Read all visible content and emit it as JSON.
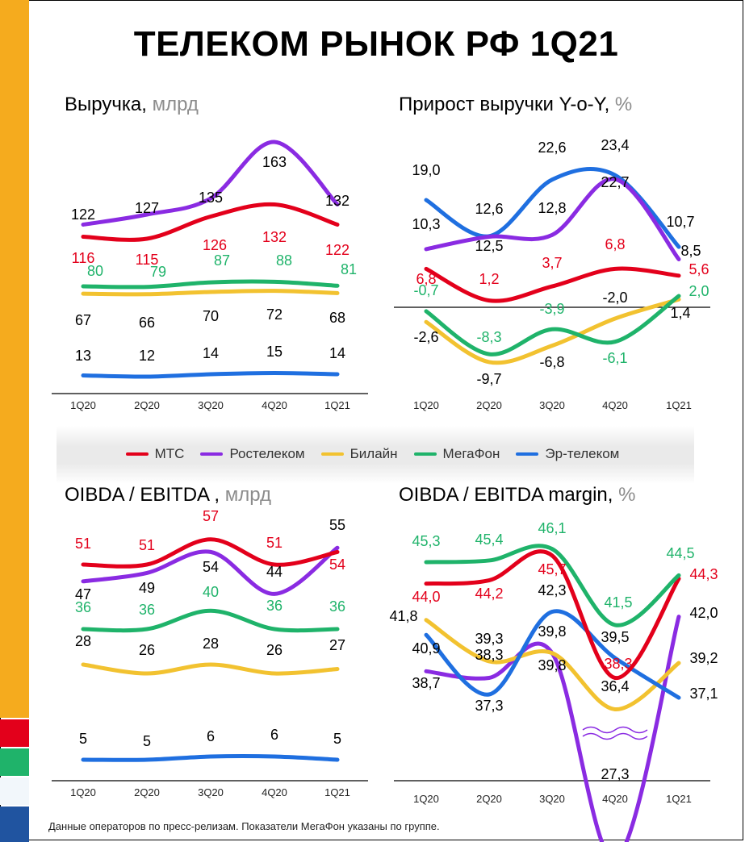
{
  "title": "ТЕЛЕКОМ РЫНОК РФ 1Q21",
  "colors": {
    "МТС": "#e3001b",
    "Ростелеком": "#8a2be2",
    "Билайн": "#f2c230",
    "МегаФон": "#1fb36a",
    "Эр-телеком": "#1f6fe0"
  },
  "legend": [
    "МТС",
    "Ростелеком",
    "Билайн",
    "МегаФон",
    "Эр-телеком"
  ],
  "footnote": "Данные операторов по пресс-релизам. Показатели МегаФон указаны по группе.",
  "chart_data": [
    {
      "type": "line",
      "title": "Выручка,",
      "unit": "млрд",
      "categories": [
        "1Q20",
        "2Q20",
        "3Q20",
        "4Q20",
        "1Q21"
      ],
      "series": [
        {
          "name": "МТС",
          "values": [
            116,
            115,
            126,
            132,
            122
          ]
        },
        {
          "name": "Ростелеком",
          "values": [
            122,
            127,
            135,
            163,
            132
          ]
        },
        {
          "name": "Билайн",
          "values": [
            67,
            66,
            70,
            72,
            68
          ]
        },
        {
          "name": "МегаФон",
          "values": [
            80,
            79,
            87,
            88,
            81
          ]
        },
        {
          "name": "Эр-телеком",
          "values": [
            13,
            12,
            14,
            15,
            14
          ]
        }
      ]
    },
    {
      "type": "line",
      "title": "Прирост выручки Y-o-Y,",
      "unit": "%",
      "categories": [
        "1Q20",
        "2Q20",
        "3Q20",
        "4Q20",
        "1Q21"
      ],
      "series": [
        {
          "name": "МТС",
          "values": [
            6.8,
            1.2,
            3.7,
            6.8,
            5.6
          ]
        },
        {
          "name": "Ростелеком",
          "values": [
            10.3,
            12.5,
            12.8,
            22.7,
            8.5
          ]
        },
        {
          "name": "Билайн",
          "values": [
            -2.6,
            -9.7,
            -6.8,
            -2.0,
            1.4
          ]
        },
        {
          "name": "МегаФон",
          "values": [
            -0.7,
            -8.3,
            -3.9,
            -6.1,
            2.0
          ]
        },
        {
          "name": "Эр-телеком",
          "values": [
            19.0,
            12.6,
            22.6,
            23.4,
            10.7
          ]
        }
      ],
      "zero_line": true
    },
    {
      "type": "line",
      "title": "OIBDA / EBITDA ,",
      "unit": "млрд",
      "categories": [
        "1Q20",
        "2Q20",
        "3Q20",
        "4Q20",
        "1Q21"
      ],
      "series": [
        {
          "name": "МТС",
          "values": [
            51,
            51,
            57,
            51,
            54
          ]
        },
        {
          "name": "Ростелеком",
          "values": [
            47,
            49,
            54,
            44,
            55
          ]
        },
        {
          "name": "Билайн",
          "values": [
            28,
            26,
            28,
            26,
            27
          ]
        },
        {
          "name": "МегаФон",
          "values": [
            36,
            36,
            40,
            36,
            36
          ]
        },
        {
          "name": "Эр-телеком",
          "values": [
            5,
            5,
            6,
            6,
            5
          ]
        }
      ]
    },
    {
      "type": "line",
      "title": "OIBDA / EBITDA margin,",
      "unit": "%",
      "categories": [
        "1Q20",
        "2Q20",
        "3Q20",
        "4Q20",
        "1Q21"
      ],
      "series": [
        {
          "name": "МТС",
          "values": [
            44.0,
            44.2,
            45.7,
            38.3,
            44.3
          ]
        },
        {
          "name": "Ростелеком",
          "values": [
            38.7,
            38.3,
            39.8,
            27.3,
            42.0
          ]
        },
        {
          "name": "Билайн",
          "values": [
            41.8,
            39.3,
            39.8,
            36.4,
            39.2
          ]
        },
        {
          "name": "МегаФон",
          "values": [
            45.3,
            45.4,
            46.1,
            41.5,
            44.5
          ]
        },
        {
          "name": "Эр-телеком",
          "values": [
            40.9,
            37.3,
            42.3,
            39.5,
            37.1
          ]
        }
      ],
      "axis_break": true
    }
  ]
}
